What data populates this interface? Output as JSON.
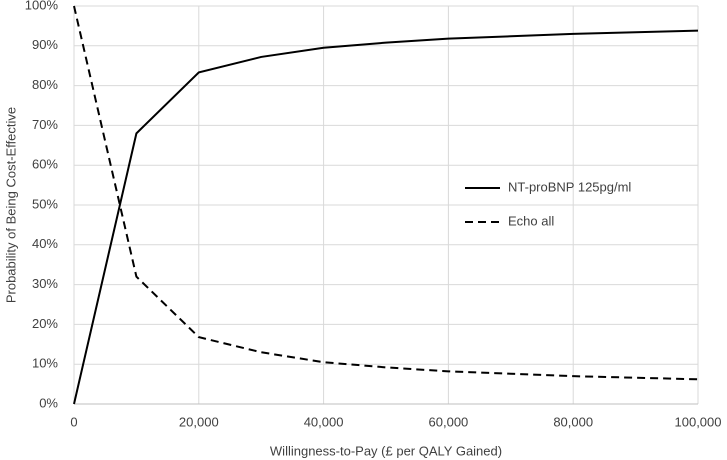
{
  "chart_data": {
    "type": "line",
    "x_label": "Willingness-to-Pay (£ per QALY Gained)",
    "y_label": "Probability of Being Cost-Effective",
    "x": [
      0,
      10000,
      20000,
      30000,
      40000,
      50000,
      60000,
      70000,
      80000,
      90000,
      100000
    ],
    "series": [
      {
        "name": "NT-proBNP 125pg/ml",
        "color": "#000000",
        "style": "solid",
        "values": [
          0,
          68,
          83.3,
          87.2,
          89.5,
          90.8,
          91.8,
          92.4,
          93,
          93.4,
          93.8
        ]
      },
      {
        "name": "Echo all",
        "color": "#000000",
        "style": "dashed",
        "values": [
          100,
          32,
          16.8,
          13,
          10.5,
          9.2,
          8.2,
          7.6,
          7,
          6.6,
          6.2
        ]
      }
    ],
    "xlim": [
      0,
      100000
    ],
    "xticks": [
      0,
      {
        "value": 20000,
        "label": "20,000"
      },
      {
        "value": 40000,
        "label": "40,000"
      },
      {
        "value": 60000,
        "label": "60,000"
      },
      {
        "value": 80000,
        "label": "80,000"
      },
      {
        "value": 100000,
        "label": "100,000"
      }
    ],
    "ylim": [
      0,
      100
    ],
    "yticks": [
      {
        "value": 0,
        "label": "0%"
      },
      {
        "value": 10,
        "label": "10%"
      },
      {
        "value": 20,
        "label": "20%"
      },
      {
        "value": 30,
        "label": "30%"
      },
      {
        "value": 40,
        "label": "40%"
      },
      {
        "value": 50,
        "label": "50%"
      },
      {
        "value": 60,
        "label": "60%"
      },
      {
        "value": 70,
        "label": "70%"
      },
      {
        "value": 80,
        "label": "80%"
      },
      {
        "value": 90,
        "label": "90%"
      },
      {
        "value": 100,
        "label": "100%"
      }
    ],
    "grid": true,
    "legend": "right"
  }
}
